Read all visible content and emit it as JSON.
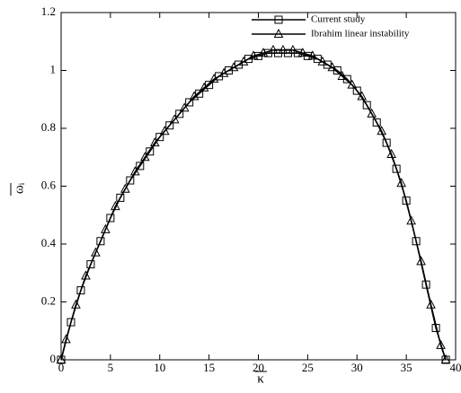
{
  "chart_data": {
    "type": "line",
    "xlabel": "κ",
    "ylabel": "ωᵢ",
    "xlim": [
      0,
      40
    ],
    "ylim": [
      0,
      1.2
    ],
    "xticks": [
      0,
      5,
      10,
      15,
      20,
      25,
      30,
      35,
      40
    ],
    "yticks": [
      0,
      0.2,
      0.4,
      0.6,
      0.8,
      1,
      1.2
    ],
    "series": [
      {
        "name": "Current study",
        "color": "#000000",
        "marker": "square",
        "x": [
          0,
          1,
          2,
          3,
          4,
          5,
          6,
          7,
          8,
          9,
          10,
          11,
          12,
          13,
          14,
          15,
          16,
          17,
          18,
          19,
          20,
          21,
          22,
          23,
          24,
          25,
          26,
          27,
          28,
          29,
          30,
          31,
          32,
          33,
          34,
          35,
          36,
          37,
          38,
          39
        ],
        "values": [
          0,
          0.13,
          0.24,
          0.33,
          0.41,
          0.49,
          0.56,
          0.62,
          0.67,
          0.72,
          0.77,
          0.81,
          0.85,
          0.89,
          0.92,
          0.95,
          0.98,
          1.0,
          1.02,
          1.04,
          1.05,
          1.06,
          1.06,
          1.06,
          1.06,
          1.05,
          1.04,
          1.02,
          1.0,
          0.97,
          0.93,
          0.88,
          0.82,
          0.75,
          0.66,
          0.55,
          0.41,
          0.26,
          0.11,
          0
        ]
      },
      {
        "name": "Ibrahim linear instability",
        "color": "#000000",
        "marker": "triangle",
        "x": [
          0,
          0.5,
          1.5,
          2.5,
          3.5,
          4.5,
          5.5,
          6.5,
          7.5,
          8.5,
          9.5,
          10.5,
          11.5,
          12.5,
          13.5,
          14.5,
          15.5,
          16.5,
          17.5,
          18.5,
          19.5,
          20.5,
          21.5,
          22.5,
          23.5,
          24.5,
          25.5,
          26.5,
          27.5,
          28.5,
          29.5,
          30.5,
          31.5,
          32.5,
          33.5,
          34.5,
          35.5,
          36.5,
          37.5,
          38.5,
          39
        ],
        "values": [
          0,
          0.07,
          0.19,
          0.29,
          0.37,
          0.45,
          0.53,
          0.59,
          0.65,
          0.7,
          0.75,
          0.79,
          0.83,
          0.87,
          0.91,
          0.94,
          0.97,
          0.99,
          1.01,
          1.03,
          1.05,
          1.06,
          1.07,
          1.07,
          1.07,
          1.06,
          1.05,
          1.03,
          1.01,
          0.98,
          0.95,
          0.91,
          0.85,
          0.79,
          0.71,
          0.61,
          0.48,
          0.34,
          0.19,
          0.05,
          0
        ]
      }
    ]
  }
}
